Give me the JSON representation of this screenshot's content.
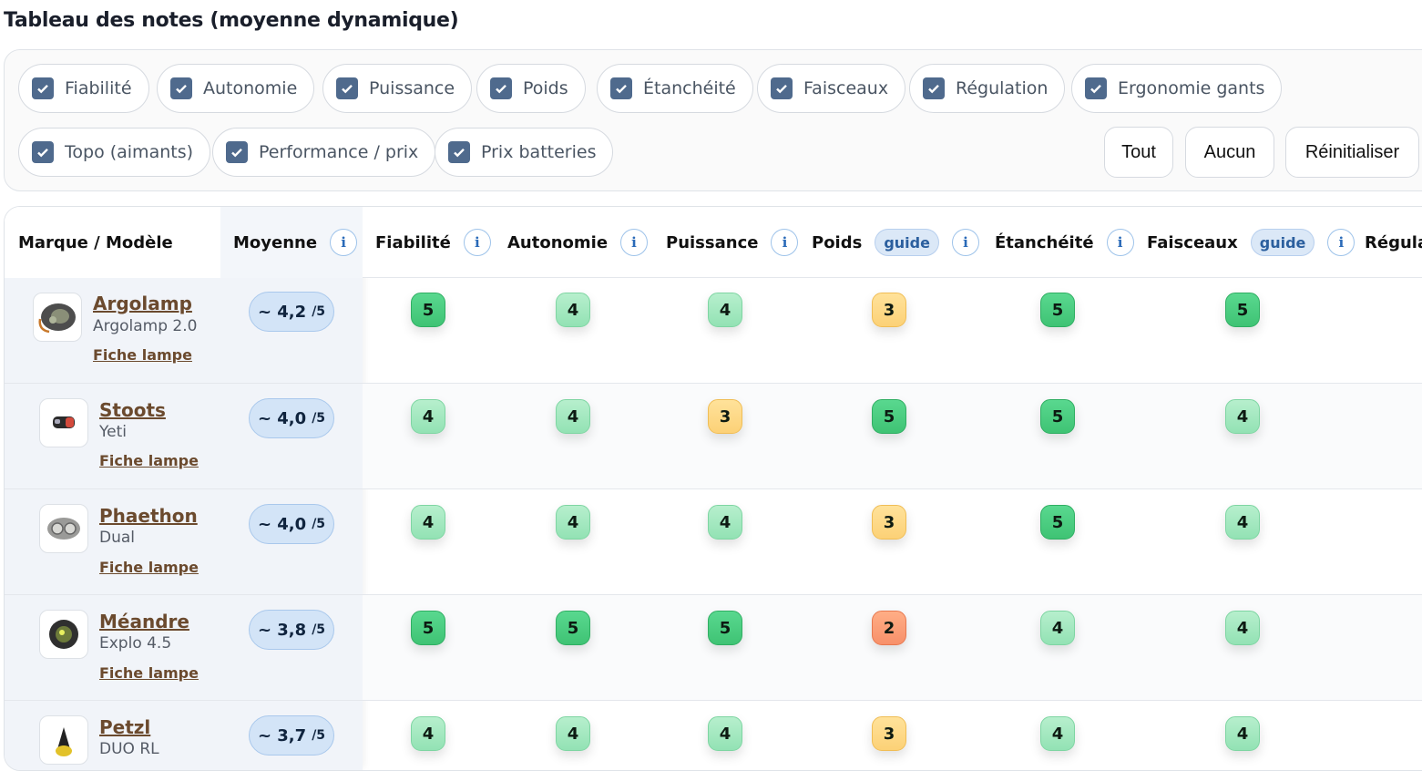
{
  "title": "Tableau des notes (moyenne dynamique)",
  "filters": [
    "Fiabilité",
    "Autonomie",
    "Puissance",
    "Poids",
    "Étanchéité",
    "Faisceaux",
    "Régulation",
    "Ergonomie gants",
    "Topo (aimants)",
    "Performance / prix",
    "Prix batteries"
  ],
  "actions": {
    "all": "Tout",
    "none": "Aucun",
    "reset": "Réinitialiser"
  },
  "header": {
    "model": "Marque / Modèle",
    "average": "Moyenne",
    "info": "i",
    "guide": "guide",
    "cols": [
      "Fiabilité",
      "Autonomie",
      "Puissance",
      "Poids",
      "Étanchéité",
      "Faisceaux",
      "Régula"
    ]
  },
  "link_label": "Fiche lampe",
  "rows": [
    {
      "brand": "Argolamp",
      "model": "Argolamp 2.0",
      "avg": "~ 4,2",
      "unit": "/5",
      "scores": [
        5,
        4,
        4,
        3,
        5,
        5
      ]
    },
    {
      "brand": "Stoots",
      "model": "Yeti",
      "avg": "~ 4,0",
      "unit": "/5",
      "scores": [
        4,
        4,
        3,
        5,
        5,
        4
      ]
    },
    {
      "brand": "Phaethon",
      "model": "Dual",
      "avg": "~ 4,0",
      "unit": "/5",
      "scores": [
        4,
        4,
        4,
        3,
        5,
        4
      ]
    },
    {
      "brand": "Méandre",
      "model": "Explo 4.5",
      "avg": "~ 3,8",
      "unit": "/5",
      "scores": [
        5,
        5,
        5,
        2,
        4,
        4
      ]
    },
    {
      "brand": "Petzl",
      "model": "DUO RL",
      "avg": "~ 3,7",
      "unit": "/5",
      "scores": [
        4,
        4,
        4,
        3,
        4,
        4
      ]
    }
  ]
}
